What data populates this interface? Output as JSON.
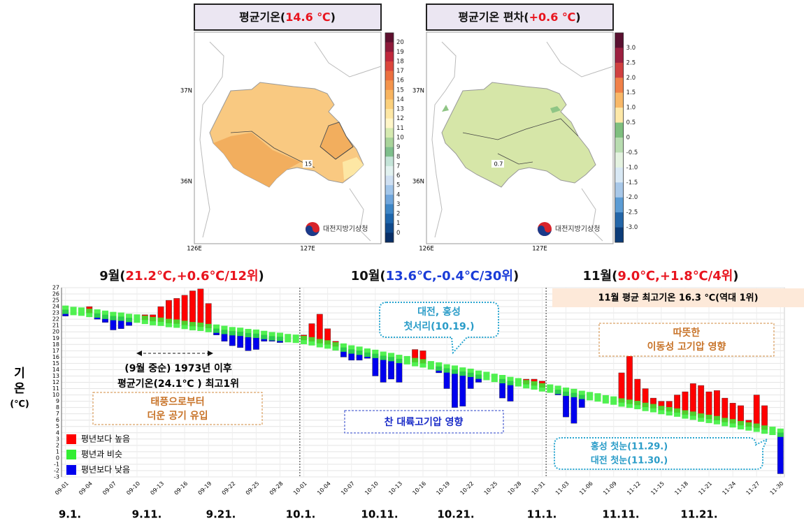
{
  "maps": [
    {
      "title_parts": [
        "평균기온(",
        "14.6 ℃",
        ")"
      ],
      "colorbar": {
        "ticks": [
          20,
          19,
          18,
          17,
          16,
          15,
          14,
          13,
          12,
          11,
          10,
          9,
          8,
          7,
          6,
          5,
          4,
          3,
          2,
          1,
          0
        ],
        "colors": [
          "#5e0f2e",
          "#8e1a3a",
          "#c0283c",
          "#dc463c",
          "#ec7040",
          "#f4944c",
          "#f8b460",
          "#fbd07c",
          "#fde7a4",
          "#fff6c8",
          "#d6eab0",
          "#a9d49a",
          "#7fbf8c",
          "#c4e4d8",
          "#e2f2f0",
          "#cfe0f2",
          "#a2c6ea",
          "#70a6dc",
          "#3e86c6",
          "#1e66ac",
          "#104a8c",
          "#082e66"
        ]
      },
      "lat_labels": [
        "37N",
        "36N"
      ],
      "lon_labels": [
        "126E",
        "127E"
      ],
      "contour_label": "15",
      "logo": "대전지방기상청"
    },
    {
      "title_parts": [
        "평균기온 편차(",
        "+0.6 ℃",
        ")"
      ],
      "colorbar": {
        "ticks": [
          {
            "value": 3,
            "label": "3.0"
          },
          {
            "value": 2.5,
            "label": "2.5"
          },
          {
            "value": 2,
            "label": "2.0"
          },
          {
            "value": 1.5,
            "label": "1.5"
          },
          {
            "value": 1,
            "label": "1.0"
          },
          {
            "value": 0.5,
            "label": "0.5"
          },
          {
            "value": 0,
            "label": "0"
          },
          {
            "value": -0.5,
            "label": "-0.5"
          },
          {
            "value": -1,
            "label": "-1.0"
          },
          {
            "value": -1.5,
            "label": "-1.5"
          },
          {
            "value": -2,
            "label": "-2.0"
          },
          {
            "value": -2.5,
            "label": "-2.5"
          },
          {
            "value": -3,
            "label": "-3.0"
          }
        ],
        "colors": [
          "#5a1030",
          "#9c2040",
          "#d04040",
          "#f08048",
          "#f8b868",
          "#fde8a8",
          "#7fbf7f",
          "#b8dcb0",
          "#e4f2e0",
          "#d8e8f4",
          "#a8c8e8",
          "#5c9cd4",
          "#2466a8",
          "#0c3c78"
        ]
      },
      "lat_labels": [
        "37N",
        "36N"
      ],
      "lon_labels": [
        "126E",
        "127E"
      ],
      "contour_label": "0.7",
      "logo": "대전지방기상청"
    }
  ],
  "chart_data": {
    "type": "bar",
    "month_headers": [
      {
        "parts": [
          "9월(",
          "21.2℃,+0.6℃/12위",
          ")"
        ],
        "color": "#e8141e"
      },
      {
        "parts": [
          "10월(",
          "13.6℃,-0.4℃/30위",
          ")"
        ],
        "color": "#1a3cd8"
      },
      {
        "parts": [
          "11월(",
          "9.0℃,+1.8℃/4위",
          ")"
        ],
        "color": "#e8141e"
      }
    ],
    "y_label": [
      "기",
      "온",
      "(℃)"
    ],
    "categories": [
      "09-01",
      null,
      null,
      "09-04",
      null,
      null,
      "09-07",
      null,
      null,
      "09-10",
      null,
      null,
      "09-13",
      null,
      null,
      "09-16",
      null,
      null,
      "09-19",
      null,
      null,
      "09-22",
      null,
      null,
      "09-25",
      null,
      null,
      "09-28",
      null,
      null,
      "10-01",
      null,
      null,
      "10-04",
      null,
      null,
      "10-07",
      null,
      null,
      "10-10",
      null,
      null,
      "10-13",
      null,
      null,
      "10-16",
      null,
      null,
      "10-19",
      null,
      null,
      "10-22",
      null,
      null,
      "10-25",
      null,
      null,
      "10-28",
      null,
      null,
      "10-31",
      null,
      null,
      "11-03",
      null,
      null,
      "11-06",
      null,
      null,
      "11-09",
      null,
      null,
      "11-12",
      null,
      null,
      "11-15",
      null,
      null,
      "11-18",
      null,
      null,
      "11-21",
      null,
      null,
      "11-24",
      null,
      null,
      "11-27",
      null,
      null,
      "11-30"
    ],
    "series": [
      {
        "name": "평년보다 높음",
        "color": "#ff0000",
        "values": [
          null,
          null,
          null,
          24,
          null,
          null,
          null,
          null,
          null,
          null,
          22.7,
          22.7,
          24,
          25,
          25.3,
          25.8,
          26.5,
          26.8,
          24.5,
          null,
          null,
          null,
          null,
          null,
          null,
          null,
          null,
          null,
          null,
          null,
          19.5,
          21.3,
          22.8,
          20.5,
          18.5,
          null,
          null,
          null,
          null,
          null,
          null,
          null,
          null,
          null,
          17.2,
          17,
          null,
          null,
          null,
          null,
          null,
          null,
          null,
          null,
          null,
          null,
          null,
          null,
          12.5,
          12.5,
          12.2,
          null,
          null,
          null,
          null,
          null,
          null,
          null,
          null,
          null,
          13.5,
          16.2,
          12.5,
          11,
          9.5,
          9,
          9,
          10,
          10.5,
          11.8,
          11.5,
          10.5,
          10.7,
          9.5,
          8.7,
          8.3,
          6,
          10,
          8.3,
          null,
          null
        ]
      },
      {
        "name": "평년과 비슷",
        "color": "#33ee33",
        "values": [
          23.5,
          23.3,
          23.2,
          23.0,
          22.9,
          22.7,
          22.5,
          22.4,
          22.2,
          22.1,
          21.9,
          21.7,
          21.6,
          21.4,
          21.3,
          21.1,
          20.9,
          20.8,
          20.6,
          20.5,
          20.3,
          20.1,
          20.0,
          19.8,
          19.7,
          19.5,
          19.3,
          19.2,
          19.0,
          18.9,
          18.7,
          18.5,
          18.2,
          18.0,
          17.7,
          17.5,
          17.2,
          17.0,
          16.7,
          16.5,
          16.2,
          16.0,
          15.7,
          15.5,
          15.2,
          15.0,
          14.7,
          14.5,
          14.2,
          14.0,
          13.7,
          13.5,
          13.2,
          13.0,
          12.7,
          12.5,
          12.2,
          12.0,
          11.7,
          11.5,
          11.2,
          11.0,
          10.8,
          10.5,
          10.3,
          10.0,
          9.8,
          9.6,
          9.3,
          9.1,
          8.8,
          8.6,
          8.4,
          8.1,
          7.9,
          7.6,
          7.4,
          7.2,
          6.9,
          6.7,
          6.4,
          6.2,
          6.0,
          5.7,
          5.5,
          5.2,
          5.0,
          4.8,
          4.5,
          4.3,
          4.0
        ]
      },
      {
        "name": "평년보다 낮음",
        "color": "#0000ee",
        "values": [
          22.5,
          null,
          null,
          null,
          22,
          21.5,
          20.3,
          20.5,
          21,
          null,
          null,
          null,
          null,
          null,
          null,
          null,
          null,
          null,
          null,
          19.5,
          18.5,
          17.8,
          17.5,
          17,
          17.2,
          18.5,
          18.5,
          18.3,
          null,
          null,
          null,
          null,
          null,
          null,
          null,
          16,
          15.5,
          15.5,
          15.8,
          13,
          12,
          12.5,
          12,
          null,
          null,
          null,
          null,
          13.5,
          11,
          8,
          8.2,
          11,
          12,
          null,
          null,
          9.5,
          9,
          null,
          null,
          null,
          null,
          null,
          10,
          6.5,
          5.5,
          8,
          null,
          null,
          null,
          null,
          null,
          null,
          null,
          null,
          null,
          null,
          null,
          null,
          null,
          null,
          null,
          null,
          null,
          null,
          null,
          null,
          null,
          null,
          null,
          null,
          -2.5
        ]
      }
    ],
    "ylim": [
      -3,
      27
    ],
    "yticks": [
      -3,
      -2,
      -1,
      0,
      1,
      2,
      3,
      4,
      5,
      6,
      7,
      8,
      9,
      10,
      11,
      12,
      13,
      14,
      15,
      16,
      17,
      18,
      19,
      20,
      21,
      22,
      23,
      24,
      25,
      26,
      27
    ],
    "grid": true,
    "date_labels": [
      "9.1.",
      "9.11.",
      "9.21.",
      "10.1.",
      "10.11.",
      "10.21.",
      "11.1.",
      "11.11.",
      "11.21."
    ],
    "annotations": {
      "record_note": [
        "(9월 중순) 1973년 이후",
        "평균기온(24.1℃ ) 최고1위"
      ],
      "typhoon": [
        "태풍으로부터",
        "더운 공기 유입"
      ],
      "frost": [
        "대전, 홍성",
        "첫서리(10.19.)"
      ],
      "continental": "찬 대륙고기압 영향",
      "nov_record": "11월 평균 최고기온 16.3 ℃(역대 1위)",
      "migratory": [
        "따뜻한",
        "이동성 고기압 영향"
      ],
      "snow": [
        "홍성 첫눈(11.29.)",
        "대전 첫눈(11.30.)"
      ]
    }
  }
}
